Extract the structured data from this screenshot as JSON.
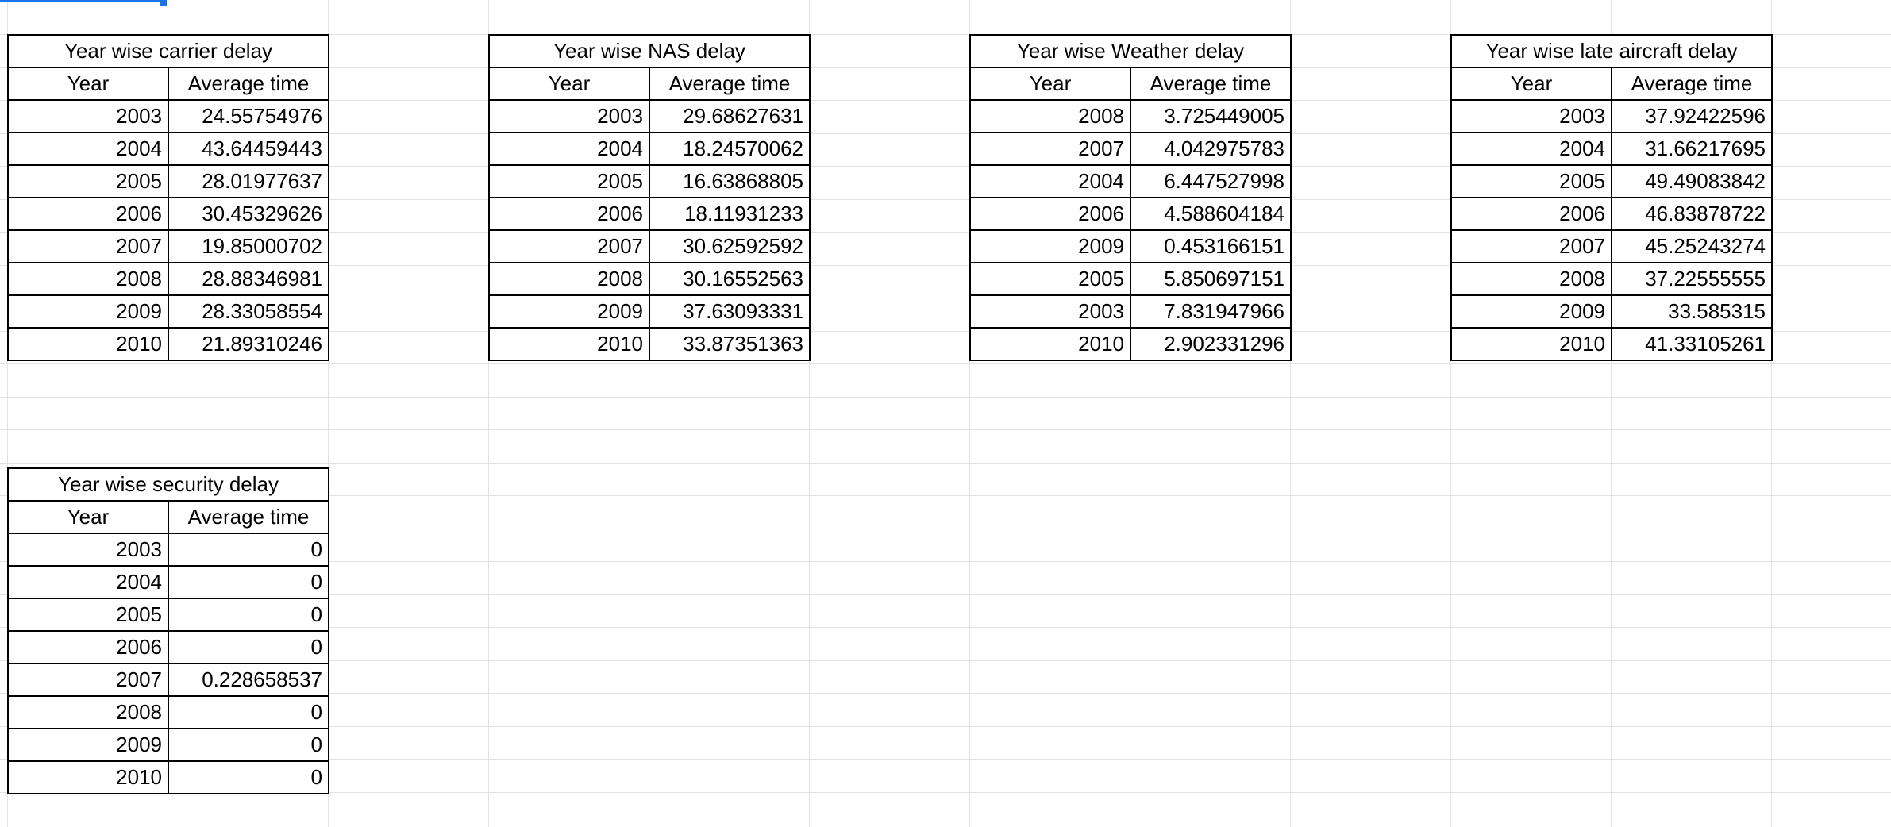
{
  "tables": [
    {
      "title": "Year wise carrier delay",
      "col_year": "Year",
      "col_avg": "Average time",
      "rows": [
        {
          "year": "2003",
          "value": "24.55754976"
        },
        {
          "year": "2004",
          "value": "43.64459443"
        },
        {
          "year": "2005",
          "value": "28.01977637"
        },
        {
          "year": "2006",
          "value": "30.45329626"
        },
        {
          "year": "2007",
          "value": "19.85000702"
        },
        {
          "year": "2008",
          "value": "28.88346981"
        },
        {
          "year": "2009",
          "value": "28.33058554"
        },
        {
          "year": "2010",
          "value": "21.89310246"
        }
      ]
    },
    {
      "title": "Year wise NAS delay",
      "col_year": "Year",
      "col_avg": "Average time",
      "rows": [
        {
          "year": "2003",
          "value": "29.68627631"
        },
        {
          "year": "2004",
          "value": "18.24570062"
        },
        {
          "year": "2005",
          "value": "16.63868805"
        },
        {
          "year": "2006",
          "value": "18.11931233"
        },
        {
          "year": "2007",
          "value": "30.62592592"
        },
        {
          "year": "2008",
          "value": "30.16552563"
        },
        {
          "year": "2009",
          "value": "37.63093331"
        },
        {
          "year": "2010",
          "value": "33.87351363"
        }
      ]
    },
    {
      "title": "Year wise Weather delay",
      "col_year": "Year",
      "col_avg": "Average time",
      "rows": [
        {
          "year": "2008",
          "value": "3.725449005"
        },
        {
          "year": "2007",
          "value": "4.042975783"
        },
        {
          "year": "2004",
          "value": "6.447527998"
        },
        {
          "year": "2006",
          "value": "4.588604184"
        },
        {
          "year": "2009",
          "value": "0.453166151"
        },
        {
          "year": "2005",
          "value": "5.850697151"
        },
        {
          "year": "2003",
          "value": "7.831947966"
        },
        {
          "year": "2010",
          "value": "2.902331296"
        }
      ]
    },
    {
      "title": "Year wise late aircraft delay",
      "col_year": "Year",
      "col_avg": "Average time",
      "rows": [
        {
          "year": "2003",
          "value": "37.92422596"
        },
        {
          "year": "2004",
          "value": "31.66217695"
        },
        {
          "year": "2005",
          "value": "49.49083842"
        },
        {
          "year": "2006",
          "value": "46.83878722"
        },
        {
          "year": "2007",
          "value": "45.25243274"
        },
        {
          "year": "2008",
          "value": "37.22555555"
        },
        {
          "year": "2009",
          "value": "33.585315"
        },
        {
          "year": "2010",
          "value": "41.33105261"
        }
      ]
    },
    {
      "title": "Year wise security delay",
      "col_year": "Year",
      "col_avg": "Average time",
      "rows": [
        {
          "year": "2003",
          "value": "0"
        },
        {
          "year": "2004",
          "value": "0"
        },
        {
          "year": "2005",
          "value": "0"
        },
        {
          "year": "2006",
          "value": "0"
        },
        {
          "year": "2007",
          "value": "0.228658537"
        },
        {
          "year": "2008",
          "value": "0"
        },
        {
          "year": "2009",
          "value": "0"
        },
        {
          "year": "2010",
          "value": "0"
        }
      ]
    }
  ],
  "colors": {
    "gridline": "#e2e3e3",
    "border": "#000000",
    "selection": "#1a73e8"
  }
}
